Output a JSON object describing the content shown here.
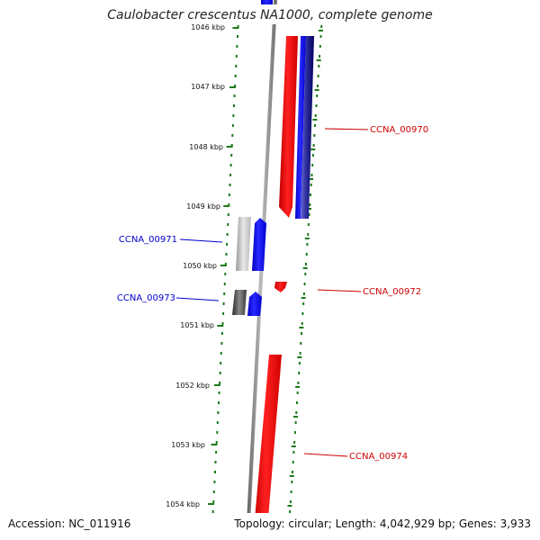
{
  "title": "Caulobacter crescentus NA1000, complete genome",
  "footer": {
    "accession": "Accession: NC_011916",
    "topology": "Topology: circular; Length: 4,042,929 bp; Genes: 3,933"
  },
  "colors": {
    "forward_gene": "#ff0000",
    "reverse_gene": "#0000ff",
    "scale_dots": "#1a7a1a",
    "forward_label": "#cc0000",
    "reverse_label": "#0000cc"
  },
  "scale": {
    "ticks": [
      {
        "label": "1046 kbp",
        "kbp": 1046
      },
      {
        "label": "1047 kbp",
        "kbp": 1047
      },
      {
        "label": "1048 kbp",
        "kbp": 1048
      },
      {
        "label": "1049 kbp",
        "kbp": 1049
      },
      {
        "label": "1050 kbp",
        "kbp": 1050
      },
      {
        "label": "1051 kbp",
        "kbp": 1051
      },
      {
        "label": "1052 kbp",
        "kbp": 1052
      },
      {
        "label": "1053 kbp",
        "kbp": 1053
      },
      {
        "label": "1054 kbp",
        "kbp": 1054
      }
    ]
  },
  "genes": [
    {
      "name": "CCNA_00970",
      "strand": "+"
    },
    {
      "name": "CCNA_00971",
      "strand": "-"
    },
    {
      "name": "CCNA_00972",
      "strand": "+"
    },
    {
      "name": "CCNA_00973",
      "strand": "-"
    },
    {
      "name": "CCNA_00974",
      "strand": "+"
    }
  ]
}
